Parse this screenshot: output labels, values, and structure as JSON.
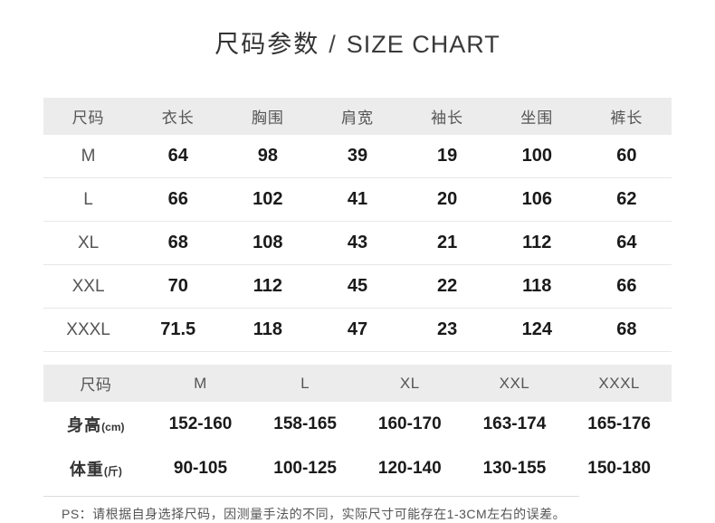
{
  "title": {
    "zh": "尺码参数",
    "sep": "/",
    "en": "SIZE CHART"
  },
  "size_table": {
    "headers": [
      "尺码",
      "衣长",
      "胸围",
      "肩宽",
      "袖长",
      "坐围",
      "裤长"
    ],
    "rows": [
      {
        "size": "M",
        "values": [
          "64",
          "98",
          "39",
          "19",
          "100",
          "60"
        ]
      },
      {
        "size": "L",
        "values": [
          "66",
          "102",
          "41",
          "20",
          "106",
          "62"
        ]
      },
      {
        "size": "XL",
        "values": [
          "68",
          "108",
          "43",
          "21",
          "112",
          "64"
        ]
      },
      {
        "size": "XXL",
        "values": [
          "70",
          "112",
          "45",
          "22",
          "118",
          "66"
        ]
      },
      {
        "size": "XXXL",
        "values": [
          "71.5",
          "118",
          "47",
          "23",
          "124",
          "68"
        ]
      }
    ]
  },
  "fit_table": {
    "headers": [
      "尺码",
      "M",
      "L",
      "XL",
      "XXL",
      "XXXL"
    ],
    "rows": [
      {
        "label": "身高",
        "unit": "(cm)",
        "values": [
          "152-160",
          "158-165",
          "160-170",
          "163-174",
          "165-176"
        ]
      },
      {
        "label": "体重",
        "unit": "(斤)",
        "values": [
          "90-105",
          "100-125",
          "120-140",
          "130-155",
          "150-180"
        ]
      }
    ]
  },
  "note": "PS：请根据自身选择尺码，因测量手法的不同，实际尺寸可能存在1-3CM左右的误差。",
  "colors": {
    "header_bg": "#ececec",
    "header_text": "#555555",
    "number_text": "#1a1a1a",
    "size_text": "#555555",
    "label_text": "#333333",
    "row_divider": "#e7e7e7",
    "note_divider": "#dcdcdc",
    "note_text": "#555555",
    "title_text": "#333333"
  }
}
